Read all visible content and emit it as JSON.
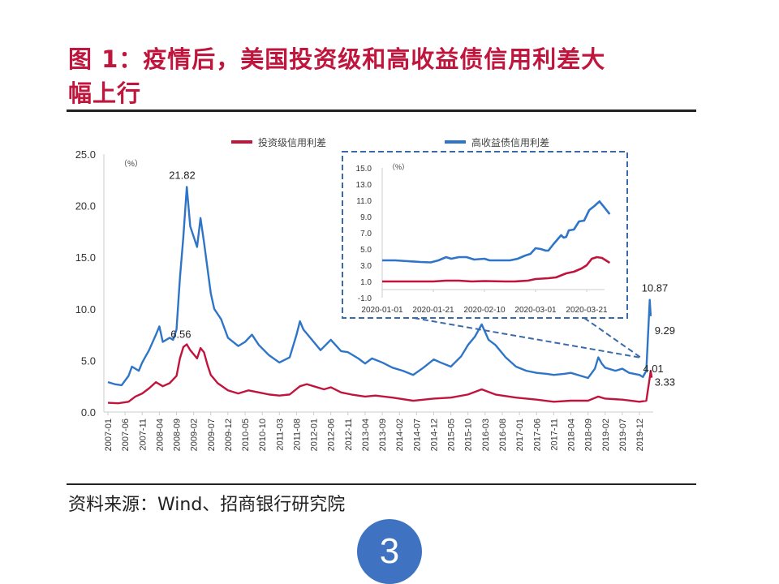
{
  "title_line1": "图 1：疫情后，美国投资级和高收益债信用利差大",
  "title_line2": "幅上行",
  "source": "资料来源：Wind、招商银行研究院",
  "page_number": "3",
  "colors": {
    "title": "#c0163e",
    "ig": "#c0143c",
    "hy": "#2e75c8",
    "inset_border": "#3a6aa8",
    "badge": "#3f72c1"
  },
  "chart_data": [
    {
      "type": "line",
      "title": "",
      "ylabel": "（%）",
      "xlabel": "",
      "ylim": [
        0,
        25
      ],
      "yticks": [
        "0.0",
        "5.0",
        "10.0",
        "15.0",
        "20.0",
        "25.0"
      ],
      "ytick_values": [
        0,
        5,
        10,
        15,
        20,
        25
      ],
      "xticks": [
        "2007-01",
        "2007-06",
        "2007-11",
        "2008-04",
        "2008-09",
        "2009-02",
        "2009-07",
        "2009-12",
        "2010-05",
        "2010-10",
        "2011-03",
        "2011-08",
        "2012-01",
        "2012-06",
        "2012-11",
        "2013-04",
        "2013-09",
        "2014-02",
        "2014-07",
        "2014-12",
        "2015-05",
        "2015-10",
        "2016-03",
        "2016-08",
        "2017-01",
        "2017-06",
        "2017-11",
        "2018-04",
        "2018-09",
        "2019-02",
        "2019-07",
        "2019-12"
      ],
      "legend": {
        "placement": "top",
        "entries": [
          "投资级信用利差",
          "高收益债信用利差"
        ]
      },
      "grid": false,
      "series": [
        {
          "name": "投资级信用利差",
          "color": "#c0143c",
          "points": [
            [
              "2007-01",
              0.9
            ],
            [
              "2007-04",
              0.85
            ],
            [
              "2007-07",
              1.0
            ],
            [
              "2007-09",
              1.5
            ],
            [
              "2007-11",
              1.8
            ],
            [
              "2008-01",
              2.3
            ],
            [
              "2008-03",
              2.9
            ],
            [
              "2008-05",
              2.5
            ],
            [
              "2008-07",
              2.8
            ],
            [
              "2008-09",
              3.5
            ],
            [
              "2008-10",
              5.2
            ],
            [
              "2008-11",
              6.3
            ],
            [
              "2008-12",
              6.56
            ],
            [
              "2009-01",
              6.0
            ],
            [
              "2009-02",
              5.6
            ],
            [
              "2009-03",
              5.2
            ],
            [
              "2009-04",
              6.2
            ],
            [
              "2009-05",
              5.8
            ],
            [
              "2009-06",
              4.6
            ],
            [
              "2009-07",
              3.6
            ],
            [
              "2009-09",
              2.8
            ],
            [
              "2009-12",
              2.1
            ],
            [
              "2010-03",
              1.8
            ],
            [
              "2010-06",
              2.1
            ],
            [
              "2010-09",
              1.9
            ],
            [
              "2010-12",
              1.7
            ],
            [
              "2011-03",
              1.6
            ],
            [
              "2011-06",
              1.7
            ],
            [
              "2011-09",
              2.5
            ],
            [
              "2011-11",
              2.7
            ],
            [
              "2012-01",
              2.5
            ],
            [
              "2012-04",
              2.2
            ],
            [
              "2012-06",
              2.4
            ],
            [
              "2012-09",
              1.9
            ],
            [
              "2012-12",
              1.7
            ],
            [
              "2013-04",
              1.5
            ],
            [
              "2013-07",
              1.6
            ],
            [
              "2013-12",
              1.4
            ],
            [
              "2014-06",
              1.1
            ],
            [
              "2014-12",
              1.3
            ],
            [
              "2015-05",
              1.4
            ],
            [
              "2015-10",
              1.7
            ],
            [
              "2016-02",
              2.2
            ],
            [
              "2016-06",
              1.7
            ],
            [
              "2016-12",
              1.4
            ],
            [
              "2017-06",
              1.2
            ],
            [
              "2017-11",
              1.0
            ],
            [
              "2018-04",
              1.1
            ],
            [
              "2018-09",
              1.1
            ],
            [
              "2018-12",
              1.5
            ],
            [
              "2019-02",
              1.3
            ],
            [
              "2019-07",
              1.2
            ],
            [
              "2019-12",
              1.0
            ],
            [
              "2020-02",
              1.1
            ],
            [
              "2020-03",
              3.33
            ],
            [
              "2020-03",
              4.0
            ],
            [
              "2020-03",
              3.33
            ]
          ]
        },
        {
          "name": "高收益债信用利差",
          "color": "#2e75c8",
          "points": [
            [
              "2007-01",
              2.9
            ],
            [
              "2007-03",
              2.7
            ],
            [
              "2007-05",
              2.6
            ],
            [
              "2007-07",
              3.5
            ],
            [
              "2007-08",
              4.4
            ],
            [
              "2007-10",
              4.0
            ],
            [
              "2007-11",
              4.8
            ],
            [
              "2008-01",
              6.0
            ],
            [
              "2008-03",
              7.5
            ],
            [
              "2008-04",
              8.3
            ],
            [
              "2008-05",
              6.8
            ],
            [
              "2008-07",
              7.2
            ],
            [
              "2008-08",
              7.0
            ],
            [
              "2008-09",
              8.0
            ],
            [
              "2008-10",
              13.0
            ],
            [
              "2008-11",
              17.0
            ],
            [
              "2008-12",
              21.82
            ],
            [
              "2009-01",
              18.0
            ],
            [
              "2009-02",
              17.0
            ],
            [
              "2009-03",
              16.0
            ],
            [
              "2009-04",
              18.8
            ],
            [
              "2009-05",
              16.5
            ],
            [
              "2009-06",
              14.0
            ],
            [
              "2009-07",
              11.5
            ],
            [
              "2009-08",
              10.0
            ],
            [
              "2009-10",
              9.0
            ],
            [
              "2009-12",
              7.2
            ],
            [
              "2010-03",
              6.4
            ],
            [
              "2010-05",
              6.8
            ],
            [
              "2010-07",
              7.5
            ],
            [
              "2010-09",
              6.5
            ],
            [
              "2010-12",
              5.5
            ],
            [
              "2011-03",
              4.8
            ],
            [
              "2011-06",
              5.3
            ],
            [
              "2011-08",
              7.5
            ],
            [
              "2011-09",
              8.8
            ],
            [
              "2011-10",
              8.0
            ],
            [
              "2011-12",
              7.2
            ],
            [
              "2012-01",
              6.8
            ],
            [
              "2012-03",
              6.0
            ],
            [
              "2012-06",
              7.0
            ],
            [
              "2012-09",
              5.9
            ],
            [
              "2012-11",
              5.8
            ],
            [
              "2013-02",
              5.2
            ],
            [
              "2013-04",
              4.7
            ],
            [
              "2013-06",
              5.2
            ],
            [
              "2013-09",
              4.8
            ],
            [
              "2013-12",
              4.3
            ],
            [
              "2014-03",
              4.0
            ],
            [
              "2014-06",
              3.6
            ],
            [
              "2014-09",
              4.3
            ],
            [
              "2014-12",
              5.1
            ],
            [
              "2015-02",
              4.8
            ],
            [
              "2015-05",
              4.4
            ],
            [
              "2015-08",
              5.4
            ],
            [
              "2015-10",
              6.5
            ],
            [
              "2015-12",
              7.3
            ],
            [
              "2016-02",
              8.5
            ],
            [
              "2016-04",
              7.0
            ],
            [
              "2016-06",
              6.5
            ],
            [
              "2016-09",
              5.3
            ],
            [
              "2016-12",
              4.4
            ],
            [
              "2017-03",
              4.0
            ],
            [
              "2017-06",
              3.8
            ],
            [
              "2017-09",
              3.7
            ],
            [
              "2017-11",
              3.6
            ],
            [
              "2018-02",
              3.7
            ],
            [
              "2018-04",
              3.8
            ],
            [
              "2018-07",
              3.5
            ],
            [
              "2018-09",
              3.3
            ],
            [
              "2018-11",
              4.2
            ],
            [
              "2018-12",
              5.3
            ],
            [
              "2019-01",
              4.7
            ],
            [
              "2019-02",
              4.3
            ],
            [
              "2019-05",
              4.0
            ],
            [
              "2019-07",
              4.2
            ],
            [
              "2019-09",
              3.8
            ],
            [
              "2019-12",
              3.6
            ],
            [
              "2020-01",
              3.4
            ],
            [
              "2020-02",
              4.01
            ],
            [
              "2020-03",
              10.87
            ],
            [
              "2020-03",
              9.29
            ]
          ]
        }
      ],
      "annotations": [
        {
          "text": "21.82",
          "series": "高收益债信用利差",
          "x": "2008-12",
          "y": 21.82
        },
        {
          "text": "6.56",
          "series": "投资级信用利差",
          "x": "2008-12",
          "y": 6.56
        },
        {
          "text": "10.87",
          "series": "高收益债信用利差",
          "x": "2020-03",
          "y": 10.87
        },
        {
          "text": "9.29",
          "series": "高收益债信用利差",
          "x": "2020-03",
          "y": 9.29
        },
        {
          "text": "4.01",
          "series": "高收益债信用利差",
          "x": "2020-02",
          "y": 4.01
        },
        {
          "text": "3.33",
          "series": "投资级信用利差",
          "x": "2020-03",
          "y": 3.33
        }
      ]
    },
    {
      "type": "line",
      "title": "inset",
      "ylabel": "（%）",
      "ylim": [
        -1,
        15
      ],
      "yticks": [
        "-1.0",
        "1.0",
        "3.0",
        "5.0",
        "7.0",
        "9.0",
        "11.0",
        "13.0",
        "15.0"
      ],
      "ytick_values": [
        -1,
        1,
        3,
        5,
        7,
        9,
        11,
        13,
        15
      ],
      "xticks": [
        "2020-01-01",
        "2020-01-21",
        "2020-02-10",
        "2020-03-01",
        "2020-03-21"
      ],
      "xtick_days": [
        0,
        20,
        40,
        60,
        80
      ],
      "series": [
        {
          "name": "投资级信用利差",
          "color": "#c0143c",
          "points": [
            [
              0,
              1.0
            ],
            [
              10,
              1.0
            ],
            [
              20,
              1.0
            ],
            [
              25,
              1.1
            ],
            [
              30,
              1.1
            ],
            [
              35,
              1.0
            ],
            [
              40,
              1.05
            ],
            [
              48,
              1.0
            ],
            [
              52,
              1.0
            ],
            [
              57,
              1.1
            ],
            [
              60,
              1.3
            ],
            [
              65,
              1.4
            ],
            [
              68,
              1.5
            ],
            [
              72,
              2.0
            ],
            [
              75,
              2.2
            ],
            [
              78,
              2.6
            ],
            [
              80,
              3.0
            ],
            [
              82,
              3.8
            ],
            [
              84,
              4.0
            ],
            [
              86,
              3.9
            ],
            [
              88,
              3.5
            ],
            [
              89,
              3.3
            ]
          ]
        },
        {
          "name": "高收益债信用利差",
          "color": "#2e75c8",
          "points": [
            [
              0,
              3.6
            ],
            [
              5,
              3.6
            ],
            [
              10,
              3.5
            ],
            [
              15,
              3.4
            ],
            [
              19,
              3.35
            ],
            [
              22,
              3.6
            ],
            [
              25,
              4.0
            ],
            [
              27,
              3.8
            ],
            [
              30,
              4.0
            ],
            [
              33,
              4.0
            ],
            [
              36,
              3.7
            ],
            [
              38,
              3.75
            ],
            [
              40,
              3.8
            ],
            [
              42,
              3.6
            ],
            [
              48,
              3.6
            ],
            [
              50,
              3.6
            ],
            [
              53,
              3.8
            ],
            [
              56,
              4.2
            ],
            [
              58,
              4.4
            ],
            [
              60,
              5.1
            ],
            [
              62,
              5.0
            ],
            [
              64,
              4.8
            ],
            [
              65,
              4.8
            ],
            [
              67,
              5.6
            ],
            [
              70,
              6.7
            ],
            [
              71,
              6.4
            ],
            [
              72,
              6.5
            ],
            [
              73,
              7.3
            ],
            [
              75,
              7.4
            ],
            [
              77,
              8.4
            ],
            [
              79,
              8.5
            ],
            [
              81,
              9.8
            ],
            [
              83,
              10.3
            ],
            [
              85,
              10.87
            ],
            [
              87,
              10.1
            ],
            [
              89,
              9.29
            ]
          ]
        }
      ]
    }
  ]
}
